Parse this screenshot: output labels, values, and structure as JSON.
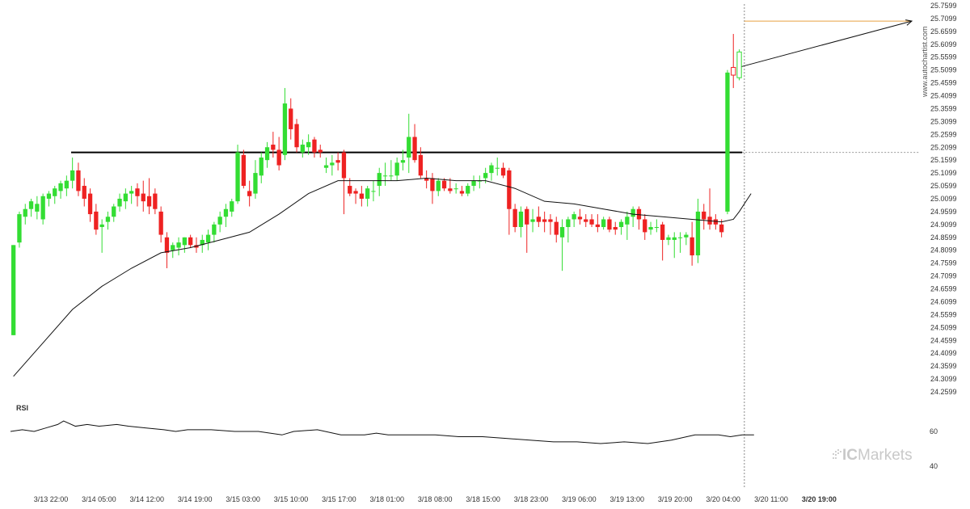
{
  "watermark": "www.autochartist.com",
  "rsi": {
    "label": "RSI",
    "ticks": [
      "60",
      "40"
    ]
  },
  "brand": {
    "name": "ICMarkets",
    "prefix": "IC",
    "suffix": "Markets"
  },
  "colors": {
    "up": "#33dd33",
    "down": "#ee2222",
    "ma": "#111111",
    "resistance": "#000000",
    "target": "#e8a040",
    "projection": "#111111",
    "current_line": "#888888"
  },
  "chart_data": {
    "type": "candlestick",
    "title": "",
    "y_axis": {
      "min": 24.2599,
      "max": 25.7599,
      "tick_labels": [
        "25.7599",
        "25.7099",
        "25.6599",
        "25.6099",
        "25.5599",
        "25.5099",
        "25.4599",
        "25.4099",
        "25.3599",
        "25.3099",
        "25.2599",
        "25.2099",
        "25.1599",
        "25.1099",
        "25.0599",
        "25.0099",
        "24.9599",
        "24.9099",
        "24.8599",
        "24.8099",
        "24.7599",
        "24.7099",
        "24.6599",
        "24.6099",
        "24.5599",
        "24.5099",
        "24.4599",
        "24.4099",
        "24.3599",
        "24.3099",
        "24.2599"
      ]
    },
    "x_axis": {
      "tick_labels": [
        "3/13 22:00",
        "3/14 05:00",
        "3/14 12:00",
        "3/14 19:00",
        "3/15 03:00",
        "3/15 10:00",
        "3/15 17:00",
        "3/18 01:00",
        "3/18 08:00",
        "3/18 15:00",
        "3/18 23:00",
        "3/19 06:00",
        "3/19 13:00",
        "3/19 20:00",
        "3/20 04:00",
        "3/20 11:00",
        "3/20 19:00"
      ],
      "highlight": "3/20 19:00"
    },
    "candles": [
      [
        24.48,
        24.83,
        24.48,
        24.83
      ],
      [
        24.84,
        24.96,
        24.82,
        24.95
      ],
      [
        24.94,
        24.99,
        24.91,
        24.97
      ],
      [
        24.97,
        25.01,
        24.94,
        25.0
      ],
      [
        24.96,
        25.02,
        24.93,
        24.99
      ],
      [
        24.93,
        25.03,
        24.91,
        25.02
      ],
      [
        25.01,
        25.04,
        24.98,
        25.03
      ],
      [
        25.02,
        25.06,
        24.99,
        25.05
      ],
      [
        25.04,
        25.08,
        25.01,
        25.07
      ],
      [
        25.05,
        25.1,
        25.02,
        25.08
      ],
      [
        25.08,
        25.17,
        25.05,
        25.12
      ],
      [
        25.12,
        25.15,
        25.02,
        25.04
      ],
      [
        25.06,
        25.09,
        24.98,
        25.01
      ],
      [
        25.03,
        25.05,
        24.92,
        24.95
      ],
      [
        24.96,
        24.99,
        24.87,
        24.89
      ],
      [
        24.9,
        24.93,
        24.8,
        24.91
      ],
      [
        24.92,
        24.96,
        24.89,
        24.94
      ],
      [
        24.94,
        24.99,
        24.92,
        24.98
      ],
      [
        24.98,
        25.03,
        24.96,
        25.01
      ],
      [
        25.0,
        25.05,
        24.97,
        25.03
      ],
      [
        25.03,
        25.06,
        24.99,
        25.04
      ],
      [
        25.05,
        25.07,
        24.98,
        25.02
      ],
      [
        25.03,
        25.08,
        24.96,
        25.0
      ],
      [
        25.02,
        25.09,
        24.95,
        24.98
      ],
      [
        25.03,
        25.05,
        24.95,
        24.97
      ],
      [
        24.96,
        24.98,
        24.84,
        24.87
      ],
      [
        24.86,
        24.88,
        24.74,
        24.8
      ],
      [
        24.81,
        24.84,
        24.78,
        24.83
      ],
      [
        24.82,
        24.86,
        24.79,
        24.84
      ],
      [
        24.83,
        24.86,
        24.8,
        24.86
      ],
      [
        24.86,
        24.87,
        24.82,
        24.83
      ],
      [
        24.83,
        24.86,
        24.8,
        24.82
      ],
      [
        24.83,
        24.87,
        24.8,
        24.85
      ],
      [
        24.84,
        24.89,
        24.81,
        24.87
      ],
      [
        24.87,
        24.92,
        24.84,
        24.91
      ],
      [
        24.91,
        24.96,
        24.88,
        24.94
      ],
      [
        24.94,
        24.99,
        24.9,
        24.97
      ],
      [
        24.96,
        25.01,
        24.94,
        25.0
      ],
      [
        25.0,
        25.22,
        24.99,
        25.19
      ],
      [
        25.18,
        25.2,
        25.05,
        25.06
      ],
      [
        25.04,
        25.08,
        24.98,
        25.02
      ],
      [
        25.03,
        25.16,
        25.01,
        25.11
      ],
      [
        25.1,
        25.19,
        25.07,
        25.17
      ],
      [
        25.16,
        25.23,
        25.13,
        25.21
      ],
      [
        25.22,
        25.27,
        25.17,
        25.2
      ],
      [
        25.2,
        25.25,
        25.12,
        25.14
      ],
      [
        25.18,
        25.44,
        25.16,
        25.38
      ],
      [
        25.36,
        25.4,
        25.24,
        25.28
      ],
      [
        25.3,
        25.32,
        25.19,
        25.21
      ],
      [
        25.19,
        25.24,
        25.17,
        25.22
      ],
      [
        25.21,
        25.26,
        25.18,
        25.23
      ],
      [
        25.24,
        25.25,
        25.17,
        25.19
      ],
      [
        25.2,
        25.22,
        25.17,
        25.19
      ],
      [
        25.13,
        25.17,
        25.11,
        25.14
      ],
      [
        25.14,
        25.18,
        25.1,
        25.15
      ],
      [
        25.16,
        25.19,
        25.12,
        25.15
      ],
      [
        25.19,
        25.2,
        24.95,
        25.09
      ],
      [
        25.06,
        25.09,
        25.02,
        25.03
      ],
      [
        25.04,
        25.05,
        24.99,
        25.03
      ],
      [
        25.03,
        25.06,
        24.98,
        25.01
      ],
      [
        25.01,
        25.06,
        24.98,
        25.05
      ],
      [
        25.04,
        25.08,
        25.0,
        25.04
      ],
      [
        25.06,
        25.13,
        25.02,
        25.11
      ],
      [
        25.1,
        25.15,
        25.06,
        25.1
      ],
      [
        25.1,
        25.16,
        25.08,
        25.1
      ],
      [
        25.1,
        25.17,
        25.08,
        25.15
      ],
      [
        25.15,
        25.2,
        25.12,
        25.16
      ],
      [
        25.17,
        25.34,
        25.11,
        25.25
      ],
      [
        25.25,
        25.3,
        25.15,
        25.16
      ],
      [
        25.18,
        25.21,
        25.09,
        25.1
      ],
      [
        25.09,
        25.12,
        25.05,
        25.08
      ],
      [
        25.09,
        25.11,
        24.99,
        25.04
      ],
      [
        25.04,
        25.09,
        25.02,
        25.08
      ],
      [
        25.08,
        25.09,
        25.04,
        25.05
      ],
      [
        25.05,
        25.09,
        25.03,
        25.04
      ],
      [
        25.05,
        25.07,
        25.03,
        25.05
      ],
      [
        25.04,
        25.06,
        25.02,
        25.03
      ],
      [
        25.03,
        25.07,
        25.02,
        25.06
      ],
      [
        25.06,
        25.1,
        25.04,
        25.08
      ],
      [
        25.08,
        25.1,
        25.05,
        25.08
      ],
      [
        25.09,
        25.13,
        25.07,
        25.11
      ],
      [
        25.11,
        25.15,
        25.08,
        25.14
      ],
      [
        25.13,
        25.17,
        25.1,
        25.13
      ],
      [
        25.13,
        25.15,
        25.09,
        25.1
      ],
      [
        25.12,
        25.13,
        24.87,
        24.97
      ],
      [
        24.97,
        24.99,
        24.88,
        24.9
      ],
      [
        24.9,
        24.98,
        24.86,
        24.96
      ],
      [
        24.97,
        24.98,
        24.8,
        24.91
      ],
      [
        24.92,
        24.97,
        24.88,
        24.93
      ],
      [
        24.94,
        24.98,
        24.9,
        24.92
      ],
      [
        24.93,
        24.96,
        24.88,
        24.92
      ],
      [
        24.93,
        24.95,
        24.87,
        24.92
      ],
      [
        24.92,
        24.94,
        24.84,
        24.87
      ],
      [
        24.86,
        24.93,
        24.73,
        24.9
      ],
      [
        24.9,
        24.94,
        24.84,
        24.93
      ],
      [
        24.93,
        24.96,
        24.9,
        24.95
      ],
      [
        24.94,
        24.97,
        24.91,
        24.93
      ],
      [
        24.93,
        24.95,
        24.9,
        24.92
      ],
      [
        24.93,
        24.95,
        24.9,
        24.91
      ],
      [
        24.91,
        24.95,
        24.88,
        24.9
      ],
      [
        24.9,
        24.94,
        24.89,
        24.93
      ],
      [
        24.93,
        24.94,
        24.88,
        24.89
      ],
      [
        24.9,
        24.92,
        24.87,
        24.89
      ],
      [
        24.9,
        24.93,
        24.87,
        24.92
      ],
      [
        24.91,
        24.96,
        24.85,
        24.94
      ],
      [
        24.94,
        24.98,
        24.9,
        24.97
      ],
      [
        24.97,
        24.98,
        24.89,
        24.93
      ],
      [
        24.93,
        24.95,
        24.85,
        24.88
      ],
      [
        24.89,
        24.92,
        24.87,
        24.9
      ],
      [
        24.9,
        24.93,
        24.88,
        24.9
      ],
      [
        24.91,
        24.92,
        24.77,
        24.85
      ],
      [
        24.85,
        24.87,
        24.83,
        24.86
      ],
      [
        24.85,
        24.88,
        24.78,
        24.86
      ],
      [
        24.86,
        24.88,
        24.8,
        24.86
      ],
      [
        24.86,
        24.88,
        24.83,
        24.87
      ],
      [
        24.86,
        24.92,
        24.75,
        24.79
      ],
      [
        24.79,
        25.01,
        24.76,
        24.96
      ],
      [
        24.96,
        24.99,
        24.89,
        24.93
      ],
      [
        24.94,
        25.05,
        24.89,
        24.91
      ],
      [
        24.93,
        24.95,
        24.89,
        24.91
      ],
      [
        24.91,
        24.93,
        24.86,
        24.88
      ],
      [
        24.96,
        25.51,
        24.95,
        25.5
      ],
      [
        25.52,
        25.65,
        25.44,
        25.49
      ],
      [
        25.48,
        25.59,
        25.47,
        25.58
      ]
    ],
    "moving_average": [
      [
        0,
        24.32
      ],
      [
        5,
        24.45
      ],
      [
        10,
        24.58
      ],
      [
        15,
        24.67
      ],
      [
        20,
        24.74
      ],
      [
        25,
        24.8
      ],
      [
        30,
        24.82
      ],
      [
        35,
        24.85
      ],
      [
        40,
        24.88
      ],
      [
        45,
        24.95
      ],
      [
        50,
        25.03
      ],
      [
        55,
        25.08
      ],
      [
        60,
        25.08
      ],
      [
        65,
        25.08
      ],
      [
        70,
        25.09
      ],
      [
        75,
        25.08
      ],
      [
        80,
        25.08
      ],
      [
        85,
        25.05
      ],
      [
        90,
        25.0
      ],
      [
        95,
        24.99
      ],
      [
        100,
        24.97
      ],
      [
        105,
        24.95
      ],
      [
        110,
        24.94
      ],
      [
        115,
        24.93
      ],
      [
        120,
        24.92
      ],
      [
        122,
        24.93
      ],
      [
        123,
        24.96
      ],
      [
        125,
        25.03
      ]
    ],
    "rsi": [
      [
        0,
        60
      ],
      [
        2,
        61
      ],
      [
        4,
        60
      ],
      [
        6,
        62
      ],
      [
        8,
        64
      ],
      [
        9,
        66
      ],
      [
        11,
        63
      ],
      [
        13,
        64
      ],
      [
        15,
        63
      ],
      [
        18,
        64
      ],
      [
        20,
        63
      ],
      [
        23,
        62
      ],
      [
        26,
        61
      ],
      [
        28,
        60
      ],
      [
        30,
        61
      ],
      [
        34,
        61
      ],
      [
        38,
        60
      ],
      [
        42,
        60
      ],
      [
        46,
        58
      ],
      [
        48,
        60
      ],
      [
        52,
        61
      ],
      [
        56,
        58
      ],
      [
        60,
        58
      ],
      [
        62,
        59
      ],
      [
        64,
        58
      ],
      [
        68,
        58
      ],
      [
        72,
        58
      ],
      [
        76,
        57
      ],
      [
        80,
        57
      ],
      [
        84,
        56
      ],
      [
        88,
        55
      ],
      [
        92,
        54
      ],
      [
        96,
        54
      ],
      [
        100,
        53
      ],
      [
        104,
        54
      ],
      [
        108,
        53
      ],
      [
        112,
        55
      ],
      [
        116,
        58
      ],
      [
        120,
        58
      ],
      [
        122,
        57
      ],
      [
        124,
        58
      ],
      [
        126,
        58
      ]
    ],
    "annotations": {
      "resistance_level": 25.19,
      "target_level": 25.7,
      "projection": {
        "from": [
          122,
          25.52
        ],
        "to": [
          131,
          25.7
        ]
      },
      "current_bar_index": 124
    }
  }
}
